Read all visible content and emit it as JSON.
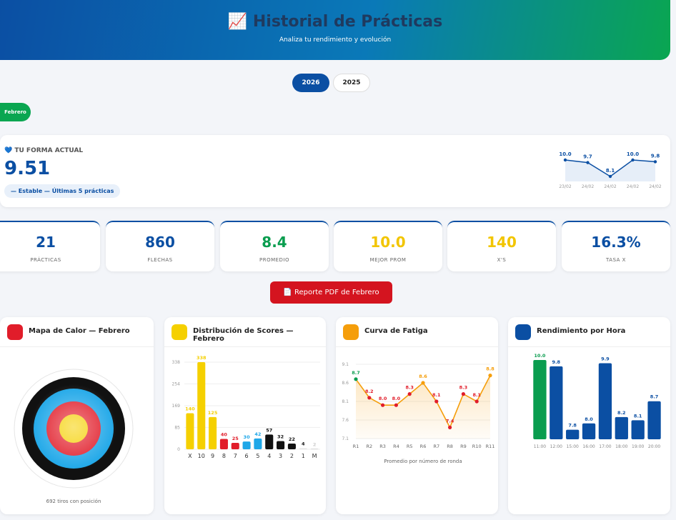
{
  "header": {
    "title": "Historial de Prácticas",
    "subtitle": "Analiza tu rendimiento y evolución"
  },
  "years": [
    "2026",
    "2025"
  ],
  "month": "Febrero",
  "form": {
    "label": "TU FORMA ACTUAL",
    "value": "9.51",
    "trend": "— Estable — Últimas 5 prácticas",
    "chart": {
      "type": "line",
      "color": "#0b4fa3",
      "categories": [
        "23/02",
        "24/02",
        "24/02",
        "24/02",
        "24/02"
      ],
      "values": [
        10.0,
        9.7,
        8.1,
        10.0,
        9.8
      ],
      "value_labels": [
        "10.0",
        "9.7",
        "8.1",
        "10.0",
        "9.8"
      ]
    }
  },
  "stats": [
    {
      "value": "21",
      "label": "PRÁCTICAS",
      "color": "#0b4fa3"
    },
    {
      "value": "860",
      "label": "FLECHAS",
      "color": "#0b4fa3"
    },
    {
      "value": "8.4",
      "label": "PROMEDIO",
      "color": "#0a9d4f"
    },
    {
      "value": "10.0",
      "label": "MEJOR PROM",
      "color": "#f2c500"
    },
    {
      "value": "140",
      "label": "X'S",
      "color": "#f2c500"
    },
    {
      "value": "16.3%",
      "label": "TASA X",
      "color": "#0b4fa3"
    }
  ],
  "button": "Reporte PDF de Febrero",
  "charts": [
    {
      "type": "target",
      "title": "Mapa de Calor — Febrero",
      "footer": "692 tiros con posición"
    },
    {
      "type": "bar",
      "title": "Distribución de Scores — Febrero",
      "categories": [
        "X",
        "10",
        "9",
        "8",
        "7",
        "6",
        "5",
        "4",
        "3",
        "2",
        "1",
        "M"
      ],
      "values": [
        140,
        338,
        125,
        40,
        25,
        30,
        42,
        57,
        32,
        22,
        4,
        2
      ],
      "colors": [
        "#f5d000",
        "#f5d000",
        "#f5d000",
        "#e11d2a",
        "#e11d2a",
        "#1ea7e8",
        "#1ea7e8",
        "#111111",
        "#111111",
        "#111111",
        "#e5e5e5",
        "#cccccc"
      ],
      "ylim": [
        0,
        338
      ],
      "yticks": [
        0,
        85,
        169,
        254,
        338
      ],
      "grid": true
    },
    {
      "type": "line",
      "title": "Curva de Fatiga",
      "categories": [
        "R1",
        "R2",
        "R3",
        "R4",
        "R5",
        "R6",
        "R7",
        "R8",
        "R9",
        "R10",
        "R11"
      ],
      "values": [
        8.7,
        8.2,
        8.0,
        8.0,
        8.3,
        8.6,
        8.1,
        7.4,
        8.3,
        8.1,
        8.8
      ],
      "value_labels": [
        "8.7",
        "8.2",
        "8.0",
        "8.0",
        "8.3",
        "8.6",
        "8.1",
        "7.4",
        "8.3",
        "8.1",
        "8.8"
      ],
      "colors": [
        "#0a9d4f",
        "#e11d2a",
        "#e11d2a",
        "#e11d2a",
        "#e11d2a",
        "#f59e0b",
        "#e11d2a",
        "#e11d2a",
        "#e11d2a",
        "#e11d2a",
        "#f59e0b"
      ],
      "color": "#f59e0b",
      "ylim": [
        7.1,
        9.1
      ],
      "yticks": [
        7.1,
        7.6,
        8.1,
        8.6,
        9.1
      ],
      "grid": true,
      "xlabel": "Promedio por número de ronda"
    },
    {
      "type": "bar",
      "title": "Rendimiento por Hora",
      "categories": [
        "11:00",
        "12:00",
        "15:00",
        "16:00",
        "17:00",
        "18:00",
        "19:00",
        "20:00"
      ],
      "values": [
        10.0,
        9.8,
        7.8,
        8.0,
        9.9,
        8.2,
        8.1,
        8.7
      ],
      "value_labels": [
        "10.0",
        "9.8",
        "7.8",
        "8.0",
        "9.9",
        "8.2",
        "8.1",
        "8.7"
      ],
      "colors": [
        "#0a9d4f",
        "#0b4fa3",
        "#0b4fa3",
        "#0b4fa3",
        "#0b4fa3",
        "#0b4fa3",
        "#0b4fa3",
        "#0b4fa3"
      ]
    }
  ]
}
